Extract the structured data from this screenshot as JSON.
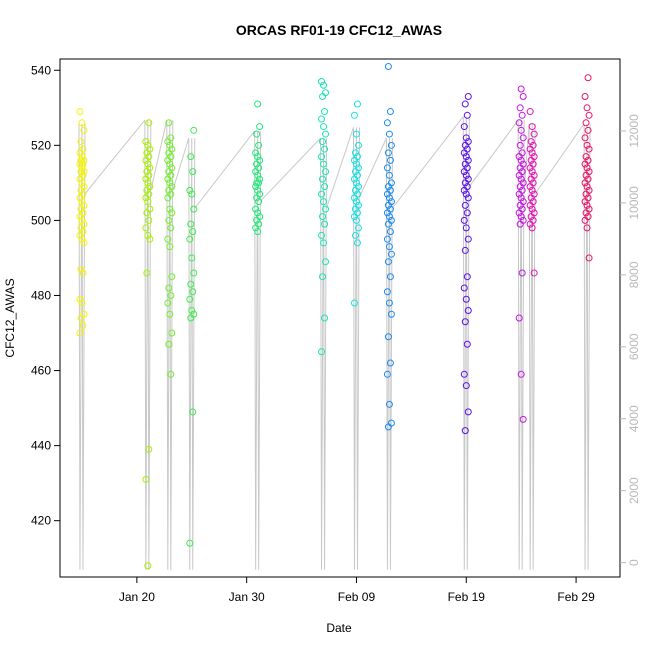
{
  "chart_data": {
    "type": "scatter",
    "title": "ORCAS RF01-19 CFC12_AWAS",
    "xlabel": "Date",
    "ylabel": "CFC12_AWAS",
    "ylim": [
      405,
      543
    ],
    "y_ticks": [
      420,
      440,
      460,
      480,
      500,
      520,
      540
    ],
    "y2_ticks": [
      0,
      2000,
      4000,
      6000,
      8000,
      10000,
      12000
    ],
    "y2lim": [
      -400,
      14000
    ],
    "x_range": [
      "2016-01-13",
      "2016-03-04"
    ],
    "x_ticks": [
      {
        "date": "2016-01-20",
        "label": "Jan 20"
      },
      {
        "date": "2016-01-30",
        "label": "Jan 30"
      },
      {
        "date": "2016-02-09",
        "label": "Feb 09"
      },
      {
        "date": "2016-02-19",
        "label": "Feb 19"
      },
      {
        "date": "2016-02-29",
        "label": "Feb 29"
      }
    ],
    "grid": false,
    "legend": "none",
    "series": [
      {
        "date": "2016-01-15",
        "color": "#f5f500",
        "values": [
          529,
          526,
          524,
          521,
          519,
          518,
          517,
          516,
          516,
          515,
          515,
          514,
          513,
          513,
          512,
          511,
          510,
          509,
          508,
          507,
          506,
          505,
          504,
          503,
          502,
          501,
          500,
          499,
          498,
          497,
          496,
          495,
          494,
          487,
          486,
          479,
          478,
          475,
          474,
          472,
          470
        ]
      },
      {
        "date": "2016-01-21",
        "color": "#a6f000",
        "values": [
          526,
          521,
          520,
          519,
          518,
          517,
          516,
          515,
          514,
          513,
          512,
          511,
          510,
          509,
          508,
          507,
          506,
          505,
          503,
          502,
          500,
          498,
          496,
          495,
          486,
          439,
          431,
          408
        ]
      },
      {
        "date": "2016-01-23",
        "color": "#72ef2c",
        "values": [
          526,
          522,
          521,
          520,
          519,
          518,
          517,
          516,
          515,
          514,
          513,
          512,
          511,
          510,
          509,
          508,
          507,
          506,
          503,
          502,
          500,
          498,
          495,
          493,
          485,
          482,
          480,
          478,
          475,
          470,
          467,
          459
        ]
      },
      {
        "date": "2016-01-25",
        "color": "#3eec50",
        "values": [
          524,
          517,
          513,
          508,
          507,
          503,
          499,
          497,
          495,
          490,
          486,
          483,
          481,
          479,
          476,
          475,
          474,
          449,
          414
        ]
      },
      {
        "date": "2016-01-31",
        "color": "#22e87a",
        "values": [
          531,
          525,
          523,
          520,
          518,
          517,
          516,
          515,
          514,
          513,
          512,
          511,
          510,
          510,
          509,
          508,
          507,
          506,
          505,
          503,
          502,
          501,
          500,
          499,
          498,
          497
        ]
      },
      {
        "date": "2016-02-06",
        "color": "#16e6b4",
        "values": [
          537,
          536,
          534,
          533,
          529,
          527,
          525,
          523,
          521,
          519,
          517,
          515,
          513,
          511,
          509,
          507,
          505,
          503,
          501,
          499,
          496,
          494,
          489,
          485,
          474,
          465
        ]
      },
      {
        "date": "2016-02-09",
        "color": "#15e2e4",
        "values": [
          531,
          528,
          523,
          520,
          518,
          517,
          516,
          515,
          514,
          513,
          512,
          511,
          510,
          509,
          508,
          507,
          506,
          505,
          504,
          503,
          502,
          501,
          500,
          498,
          496,
          494,
          478
        ]
      },
      {
        "date": "2016-02-12",
        "color": "#1a8cf0",
        "values": [
          541,
          529,
          526,
          523,
          520,
          518,
          516,
          514,
          512,
          510,
          509,
          508,
          507,
          506,
          505,
          504,
          503,
          502,
          501,
          500,
          499,
          497,
          495,
          493,
          491,
          489,
          485,
          481,
          478,
          475,
          469,
          462,
          459,
          451,
          446,
          445
        ]
      },
      {
        "date": "2016-02-19",
        "color": "#5a12e8",
        "values": [
          533,
          531,
          528,
          525,
          522,
          521,
          520,
          519,
          518,
          517,
          516,
          515,
          514,
          513,
          512,
          511,
          510,
          509,
          508,
          507,
          506,
          504,
          502,
          500,
          498,
          495,
          492,
          485,
          482,
          479,
          476,
          473,
          467,
          459,
          456,
          449,
          444
        ]
      },
      {
        "date": "2016-02-24",
        "color": "#c516e3",
        "values": [
          535,
          533,
          530,
          528,
          526,
          524,
          522,
          520,
          518,
          517,
          516,
          515,
          514,
          513,
          512,
          511,
          510,
          509,
          508,
          507,
          506,
          505,
          504,
          503,
          502,
          501,
          500,
          499,
          486,
          474,
          459,
          447
        ]
      },
      {
        "date": "2016-02-25",
        "color": "#e214b5",
        "values": [
          529,
          525,
          523,
          521,
          520,
          519,
          518,
          517,
          516,
          515,
          514,
          513,
          512,
          511,
          510,
          509,
          508,
          507,
          506,
          505,
          504,
          503,
          502,
          501,
          500,
          499,
          498,
          486
        ]
      },
      {
        "date": "2016-03-01",
        "color": "#e8146a",
        "values": [
          538,
          533,
          530,
          528,
          526,
          524,
          522,
          520,
          519,
          517,
          516,
          515,
          514,
          513,
          512,
          511,
          510,
          509,
          508,
          507,
          506,
          505,
          504,
          503,
          502,
          501,
          500,
          498,
          490
        ]
      }
    ]
  }
}
